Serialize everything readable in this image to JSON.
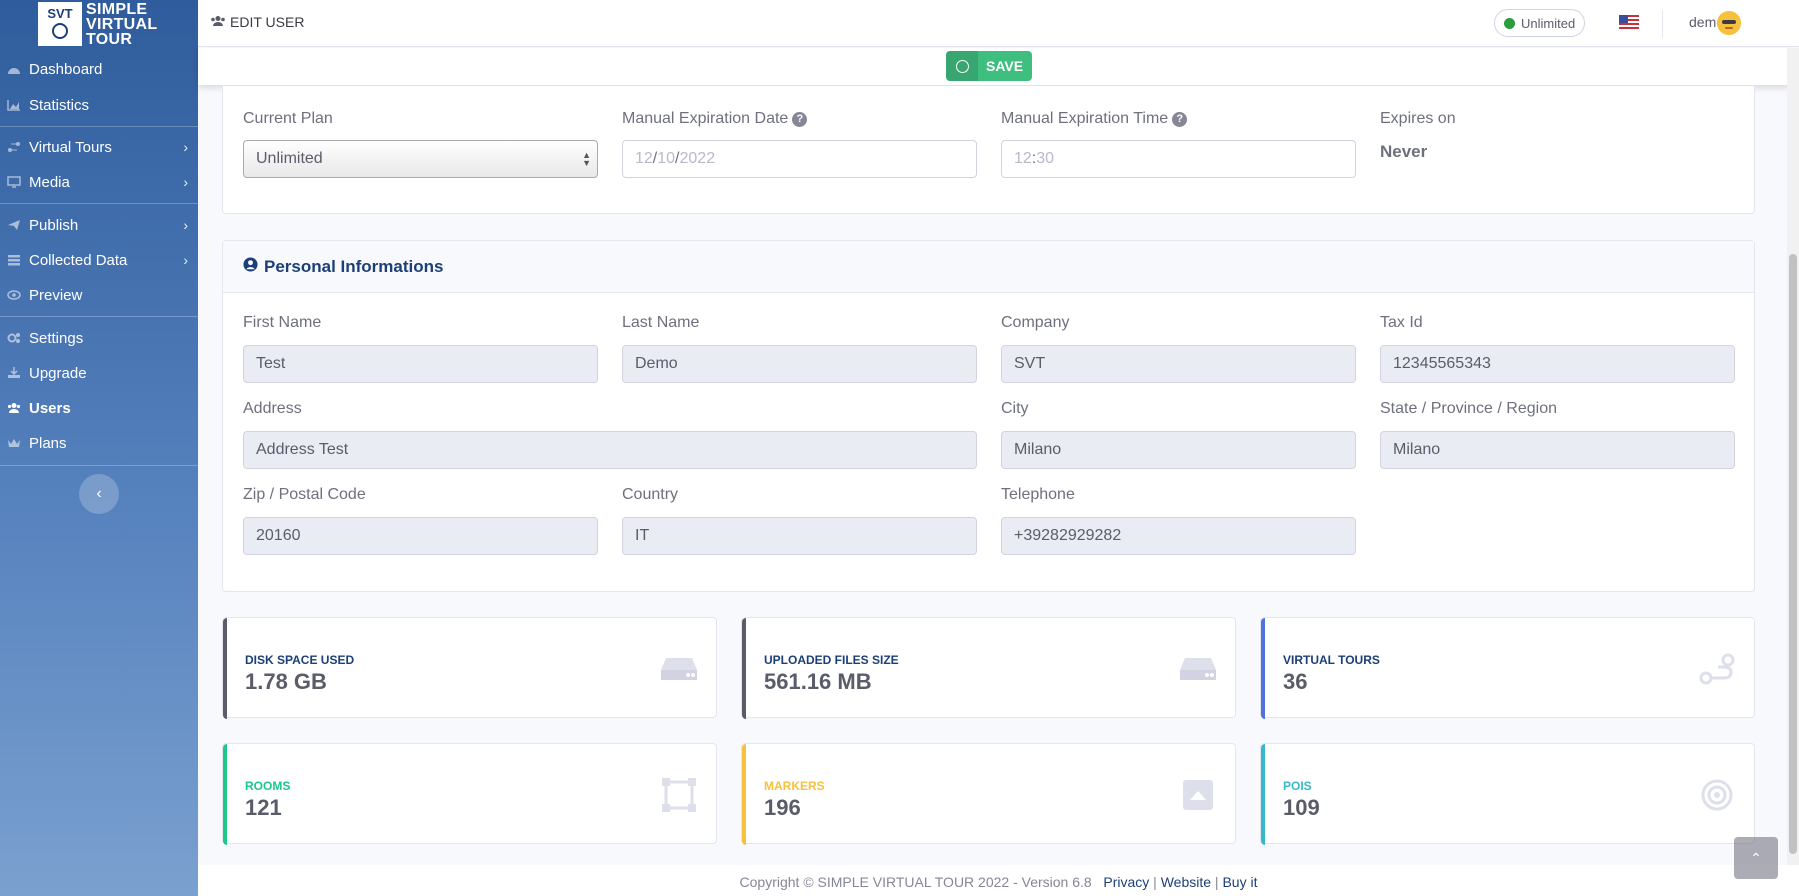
{
  "brand": {
    "logo_mark": "SVT",
    "lines": [
      "SIMPLE",
      "VIRTUAL",
      "TOUR"
    ]
  },
  "sidebar": {
    "items": [
      {
        "label": "Dashboard",
        "icon": "dashboard-icon"
      },
      {
        "label": "Statistics",
        "icon": "chart-area-icon"
      },
      {
        "label": "Virtual Tours",
        "icon": "route-icon",
        "submenu": true
      },
      {
        "label": "Media",
        "icon": "desktop-icon",
        "submenu": true
      },
      {
        "label": "Publish",
        "icon": "paper-plane-icon",
        "submenu": true
      },
      {
        "label": "Collected Data",
        "icon": "database-icon",
        "submenu": true
      },
      {
        "label": "Preview",
        "icon": "eye-icon"
      },
      {
        "label": "Settings",
        "icon": "cogs-icon"
      },
      {
        "label": "Upgrade",
        "icon": "download-icon"
      },
      {
        "label": "Users",
        "icon": "users-icon",
        "active": true
      },
      {
        "label": "Plans",
        "icon": "crown-icon"
      }
    ],
    "collapse_icon": "chevron-left-icon"
  },
  "topbar": {
    "title": "EDIT USER",
    "plan_badge": "Unlimited",
    "flag": "us-flag-icon",
    "user_name": "demo"
  },
  "savebar": {
    "save_label": "SAVE"
  },
  "plan": {
    "current_plan_label": "Current Plan",
    "current_plan_value": "Unlimited",
    "expiration_date_label": "Manual Expiration Date",
    "expiration_date_parts": [
      "12",
      "10",
      "2022"
    ],
    "expiration_time_label": "Manual Expiration Time",
    "expiration_time_parts": [
      "12",
      "30"
    ],
    "expires_on_label": "Expires on",
    "expires_on_value": "Never"
  },
  "personal": {
    "header": "Personal Informations",
    "first_name_label": "First Name",
    "first_name": "Test",
    "last_name_label": "Last Name",
    "last_name": "Demo",
    "company_label": "Company",
    "company": "SVT",
    "tax_id_label": "Tax Id",
    "tax_id": "12345565343",
    "address_label": "Address",
    "address": "Address Test",
    "city_label": "City",
    "city": "Milano",
    "state_label": "State / Province / Region",
    "state": "Milano",
    "zip_label": "Zip / Postal Code",
    "zip": "20160",
    "country_label": "Country",
    "country": "IT",
    "telephone_label": "Telephone",
    "telephone": "+39282929282"
  },
  "stats": [
    {
      "label": "DISK SPACE USED",
      "value": "1.78 GB",
      "color": "#5a5c69",
      "icon": "hdd-icon"
    },
    {
      "label": "UPLOADED FILES SIZE",
      "value": "561.16 MB",
      "color": "#5a5c69",
      "icon": "hdd-icon"
    },
    {
      "label": "VIRTUAL TOURS",
      "value": "36",
      "color": "#4e73df",
      "icon": "route-icon"
    },
    {
      "label": "ROOMS",
      "value": "121",
      "color": "#1cc88a",
      "icon": "vector-square-icon"
    },
    {
      "label": "MARKERS",
      "value": "196",
      "color": "#f6c23e",
      "icon": "caret-square-up-icon"
    },
    {
      "label": "POIS",
      "value": "109",
      "color": "#36b9cc",
      "icon": "bullseye-icon"
    }
  ],
  "footer": {
    "copyright": "Copyright © SIMPLE VIRTUAL TOUR 2022 - Version 6.8",
    "privacy": "Privacy",
    "website": "Website",
    "buy": "Buy it"
  }
}
